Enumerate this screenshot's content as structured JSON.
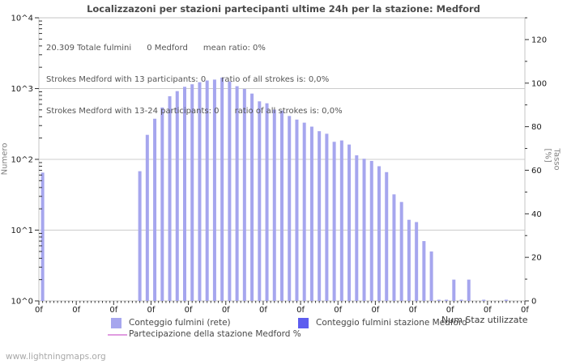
{
  "title": "Localizzazoni per stazioni partecipanti ultime 24h per la stazione: Medford",
  "annotations": {
    "line1": "20.309 Totale fulmini      0 Medford      mean ratio: 0%",
    "line2": "Strokes Medford with 13 participants: 0      ratio of all strokes is: 0,0%",
    "line3": "Strokes Medford with 13-24 participants: 0      ratio of all strokes is: 0,0%"
  },
  "axes": {
    "left_label": "Numero",
    "right_label": "Tasso [%]",
    "x_label": "Num Staz utilizzate"
  },
  "legend": {
    "network_bars": "Conteggio fulmini (rete)",
    "station_bars": "Conteggio fulmini stazione Medford",
    "participation_line": "Partecipazione della stazione Medford %"
  },
  "footer": "www.lightningmaps.org",
  "colors": {
    "bar": "#a6a6ee",
    "station_bar": "#5d5def",
    "line": "#e09ce0",
    "grid": "#cccccc",
    "border": "#c6c6c6",
    "tick": "#333333",
    "tick_label": "#1a1a1a"
  },
  "chart_data": {
    "type": "bar",
    "title": "Localizzazoni per stazioni partecipanti ultime 24h per la stazione: Medford",
    "xlabel": "Num Staz utilizzate",
    "ylabel": "Numero",
    "ylabel_right": "Tasso [%]",
    "y_scale": "log",
    "ylim": [
      1,
      10000
    ],
    "y_ticks_left": [
      "10^0",
      "10^1",
      "10^2",
      "10^3",
      "10^4"
    ],
    "ylim_right": [
      0,
      130
    ],
    "y_ticks_right": [
      0,
      20,
      40,
      60,
      80,
      100,
      120
    ],
    "x_slots": 65,
    "x_major_every": 5,
    "x_tick_labels": [
      "0f",
      "0f",
      "0f",
      "0f",
      "0f",
      "0f",
      "0f",
      "0f",
      "0f",
      "0f",
      "0f",
      "0f",
      "0f",
      "0f"
    ],
    "grid": "horizontal-decades",
    "legend_position": "bottom",
    "series": [
      {
        "name": "Conteggio fulmini (rete)",
        "type": "bar",
        "color": "#a6a6ee",
        "points": [
          [
            0,
            65
          ],
          [
            13,
            68
          ],
          [
            14,
            222
          ],
          [
            15,
            375
          ],
          [
            16,
            540
          ],
          [
            17,
            780
          ],
          [
            18,
            920
          ],
          [
            19,
            1060
          ],
          [
            20,
            1150
          ],
          [
            21,
            1230
          ],
          [
            22,
            1300
          ],
          [
            23,
            1340
          ],
          [
            24,
            1430
          ],
          [
            25,
            1260
          ],
          [
            26,
            1080
          ],
          [
            27,
            990
          ],
          [
            28,
            850
          ],
          [
            29,
            660
          ],
          [
            30,
            620
          ],
          [
            31,
            505
          ],
          [
            32,
            490
          ],
          [
            33,
            410
          ],
          [
            34,
            365
          ],
          [
            35,
            330
          ],
          [
            36,
            290
          ],
          [
            37,
            250
          ],
          [
            38,
            230
          ],
          [
            39,
            177
          ],
          [
            40,
            185
          ],
          [
            41,
            162
          ],
          [
            42,
            114
          ],
          [
            43,
            102
          ],
          [
            44,
            95
          ],
          [
            45,
            80
          ],
          [
            46,
            66
          ],
          [
            47,
            32
          ],
          [
            48,
            25
          ],
          [
            49,
            14
          ],
          [
            50,
            13
          ],
          [
            51,
            7
          ],
          [
            52,
            5
          ],
          [
            53,
            1
          ],
          [
            54,
            1
          ],
          [
            55,
            2
          ],
          [
            56,
            1
          ],
          [
            57,
            2
          ],
          [
            59,
            1
          ],
          [
            62,
            1
          ]
        ]
      },
      {
        "name": "Conteggio fulmini stazione Medford",
        "type": "bar",
        "color": "#5d5def",
        "points": []
      },
      {
        "name": "Partecipazione della stazione Medford %",
        "type": "line",
        "color": "#e09ce0",
        "points": []
      }
    ]
  }
}
